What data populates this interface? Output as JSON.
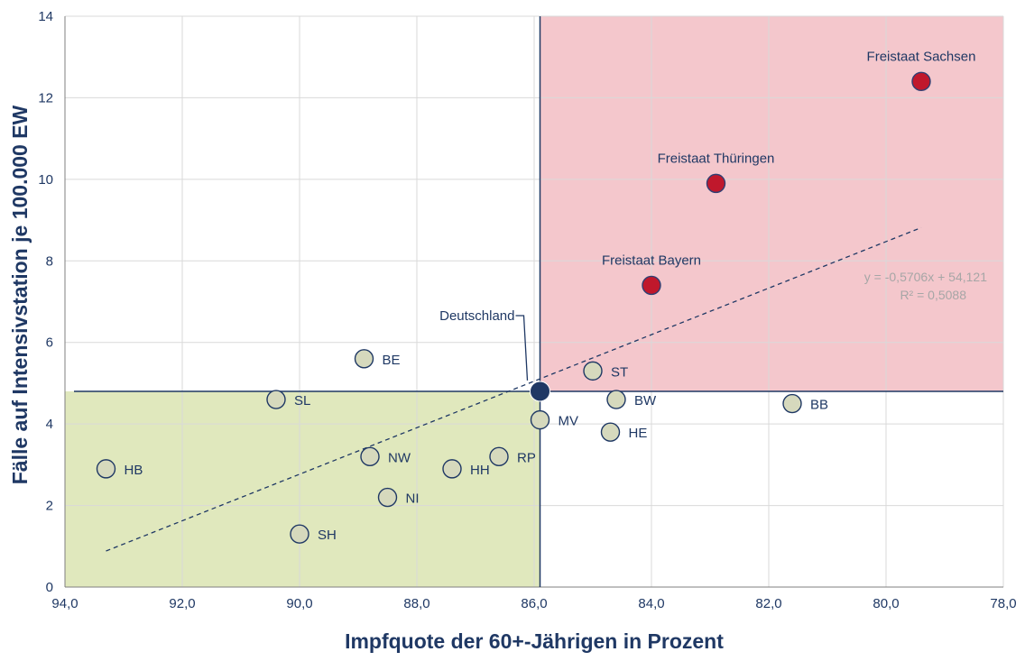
{
  "chart_data": {
    "type": "scatter",
    "title": "",
    "xlabel": "Impfquote der 60+-Jährigen in Prozent",
    "ylabel": "Fälle auf Intensivstation je 100.000 EW",
    "xlim": [
      94,
      78
    ],
    "ylim": [
      0,
      14
    ],
    "x_reversed": true,
    "grid": true,
    "x_ticks": [
      "94,0",
      "92,0",
      "90,0",
      "88,0",
      "86,0",
      "84,0",
      "82,0",
      "80,0",
      "78,0"
    ],
    "y_ticks": [
      "0",
      "2",
      "4",
      "6",
      "8",
      "10",
      "12",
      "14"
    ],
    "x_tick_values": [
      94,
      92,
      90,
      88,
      86,
      84,
      82,
      80,
      78
    ],
    "y_tick_values": [
      0,
      2,
      4,
      6,
      8,
      10,
      12,
      14
    ],
    "reference": {
      "x": 85.9,
      "y": 4.8
    },
    "regions": [
      {
        "x": [
          85.9,
          78
        ],
        "y": [
          4.8,
          14
        ],
        "color": "#f4c7cc"
      },
      {
        "x": [
          94,
          85.9
        ],
        "y": [
          0,
          4.8
        ],
        "color": "#e0e8bd"
      }
    ],
    "points": [
      {
        "label": "HB",
        "x": 93.3,
        "y": 2.9,
        "color": "#d6d9bd",
        "label_side": "right"
      },
      {
        "label": "SH",
        "x": 90.0,
        "y": 1.3,
        "color": "#d6d9bd",
        "label_side": "right"
      },
      {
        "label": "SL",
        "x": 90.4,
        "y": 4.6,
        "color": "#d6d9bd",
        "label_side": "right"
      },
      {
        "label": "BE",
        "x": 88.9,
        "y": 5.6,
        "color": "#d6d9bd",
        "label_side": "right"
      },
      {
        "label": "NW",
        "x": 88.8,
        "y": 3.2,
        "color": "#d6d9bd",
        "label_side": "right"
      },
      {
        "label": "NI",
        "x": 88.5,
        "y": 2.2,
        "color": "#d6d9bd",
        "label_side": "right"
      },
      {
        "label": "HH",
        "x": 87.4,
        "y": 2.9,
        "color": "#d6d9bd",
        "label_side": "right"
      },
      {
        "label": "RP",
        "x": 86.6,
        "y": 3.2,
        "color": "#d6d9bd",
        "label_side": "right"
      },
      {
        "label": "MV",
        "x": 85.9,
        "y": 4.1,
        "color": "#d6d9bd",
        "label_side": "right"
      },
      {
        "label": "ST",
        "x": 85.0,
        "y": 5.3,
        "color": "#d6d9bd",
        "label_side": "right"
      },
      {
        "label": "BW",
        "x": 84.6,
        "y": 4.6,
        "color": "#d6d9bd",
        "label_side": "right"
      },
      {
        "label": "HE",
        "x": 84.7,
        "y": 3.8,
        "color": "#d6d9bd",
        "label_side": "right"
      },
      {
        "label": "BB",
        "x": 81.6,
        "y": 4.5,
        "color": "#d6d9bd",
        "label_side": "right"
      },
      {
        "label": "Freistaat Bayern",
        "x": 84.0,
        "y": 7.4,
        "color": "#c0182c",
        "label_side": "above"
      },
      {
        "label": "Freistaat Thüringen",
        "x": 82.9,
        "y": 9.9,
        "color": "#c0182c",
        "label_side": "above"
      },
      {
        "label": "Freistaat Sachsen",
        "x": 79.4,
        "y": 12.4,
        "color": "#c0182c",
        "label_side": "above"
      },
      {
        "label": "Deutschland",
        "x": 85.9,
        "y": 4.8,
        "color": "#1f3864",
        "label_side": "callout"
      }
    ],
    "trendline": {
      "x": [
        93.3,
        79.4
      ],
      "equation": "y = -0,5706x + 54,121",
      "r2": "R² = 0,5088",
      "color": "#1f3864"
    }
  }
}
